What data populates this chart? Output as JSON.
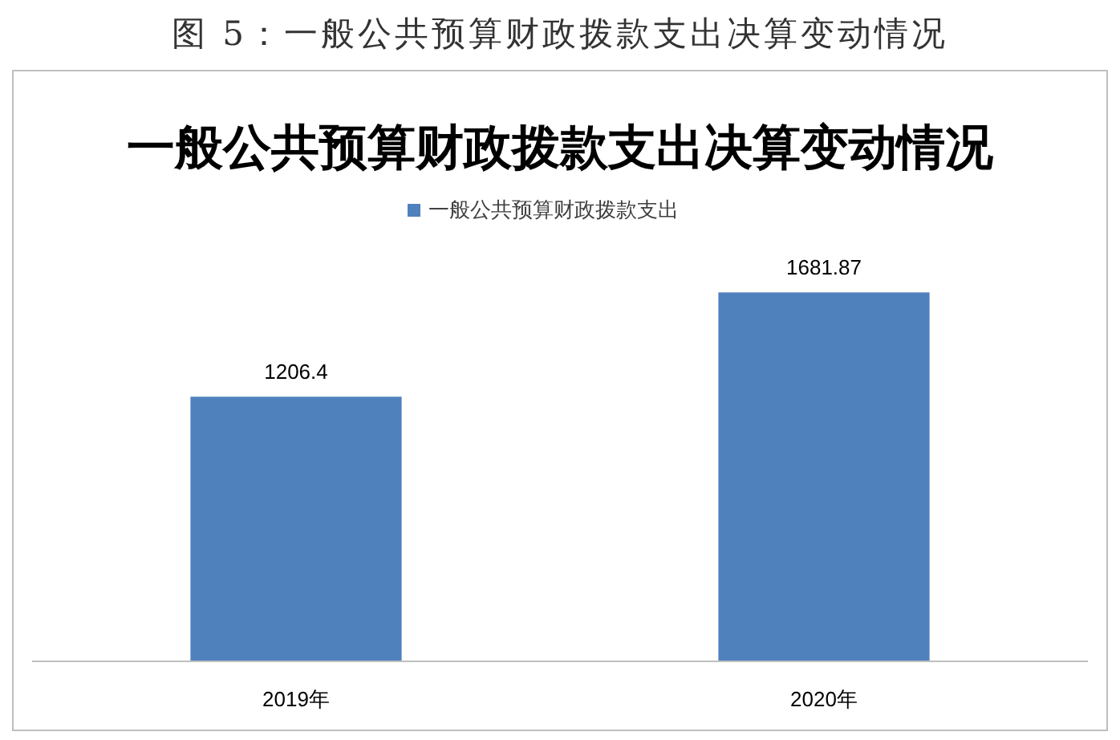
{
  "chart_data": {
    "type": "bar",
    "title": "一般公共预算财政拨款支出决算变动情况",
    "annotations": [
      "图 5：一般公共预算财政拨款支出决算变动情况"
    ],
    "categories": [
      "2019年",
      "2020年"
    ],
    "series": [
      {
        "name": "一般公共预算财政拨款支出",
        "color": "#4f81bd",
        "values": [
          1206.4,
          1681.87
        ]
      }
    ],
    "data_labels": true,
    "legend": "top"
  }
}
